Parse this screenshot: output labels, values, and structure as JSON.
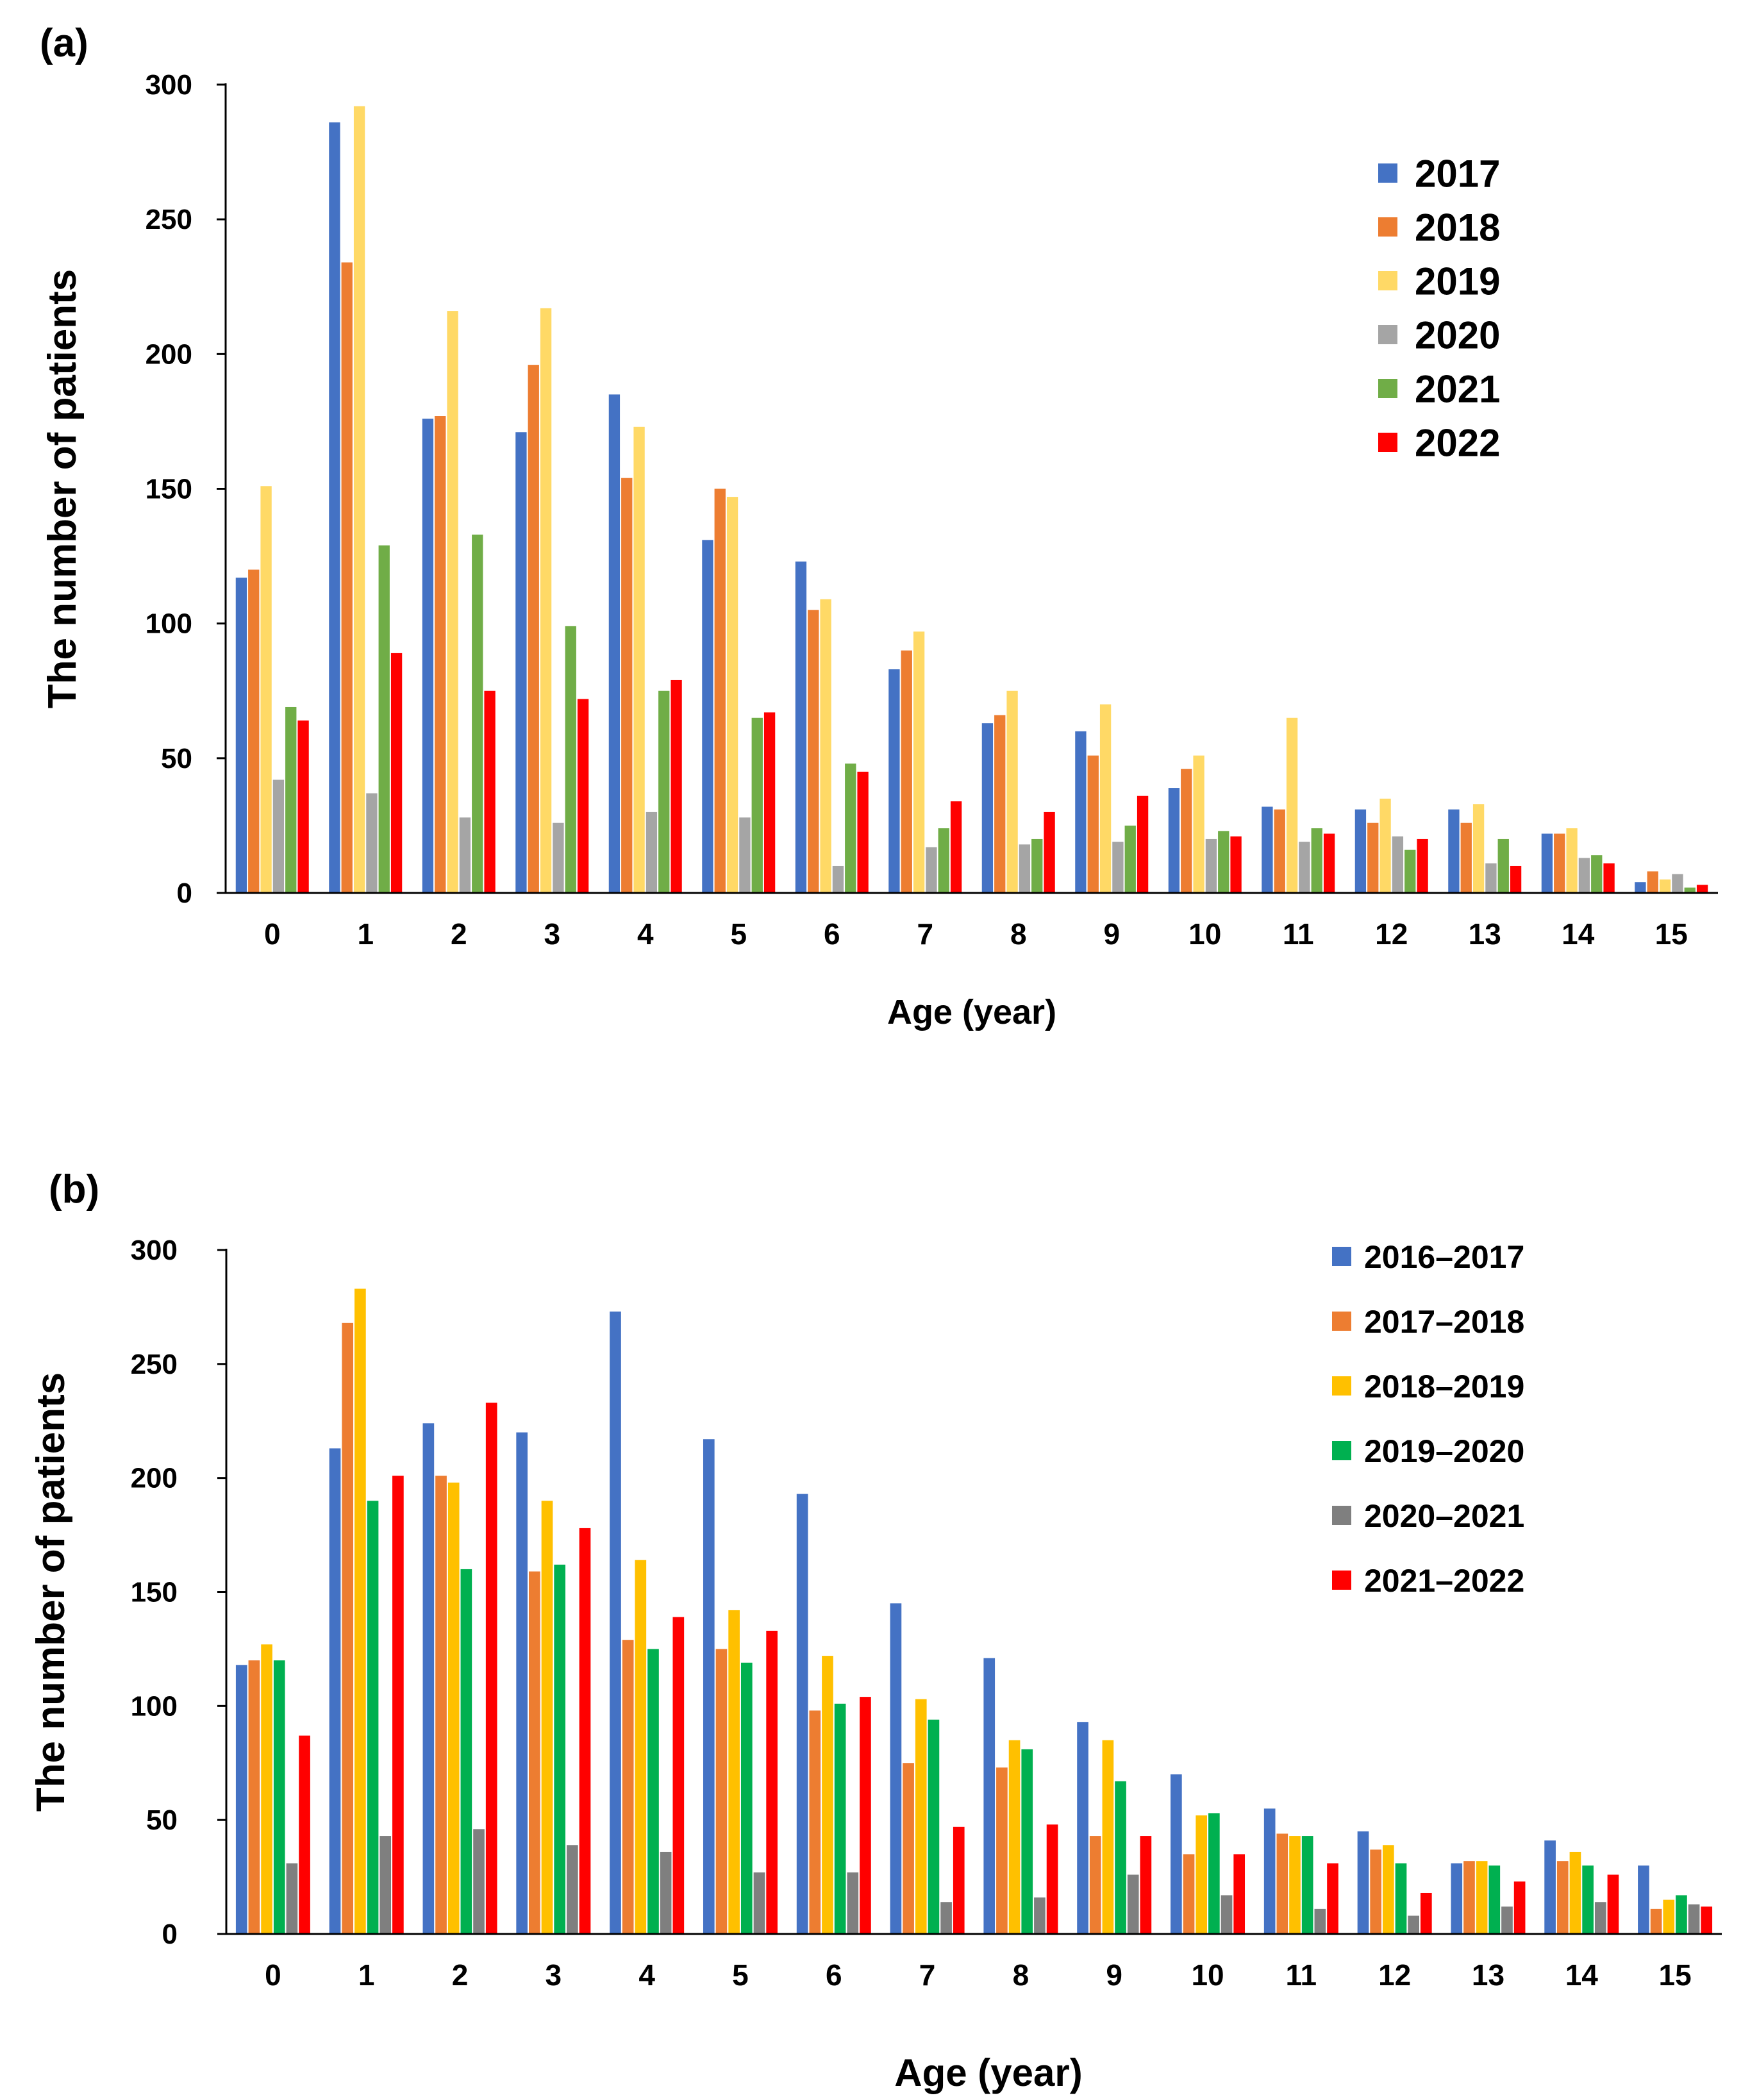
{
  "chart_data": [
    {
      "type": "bar",
      "panel_label": "(a)",
      "xlabel": "Age (year)",
      "ylabel": "The number of patients",
      "ylim": [
        0,
        300
      ],
      "yticks": [
        0,
        50,
        100,
        150,
        200,
        250,
        300
      ],
      "categories": [
        "0",
        "1",
        "2",
        "3",
        "4",
        "5",
        "6",
        "7",
        "8",
        "9",
        "10",
        "11",
        "12",
        "13",
        "14",
        "15"
      ],
      "legend_position": "top-right",
      "series": [
        {
          "name": "2017",
          "color": "#4472C4",
          "values": [
            117,
            286,
            176,
            171,
            185,
            131,
            123,
            83,
            63,
            60,
            39,
            32,
            31,
            31,
            22,
            4
          ]
        },
        {
          "name": "2018",
          "color": "#ED7D31",
          "values": [
            120,
            234,
            177,
            196,
            154,
            150,
            105,
            90,
            66,
            51,
            46,
            31,
            26,
            26,
            22,
            8
          ]
        },
        {
          "name": "2019",
          "color": "#FFD966",
          "values": [
            151,
            292,
            216,
            217,
            173,
            147,
            109,
            97,
            75,
            70,
            51,
            65,
            35,
            33,
            24,
            5
          ]
        },
        {
          "name": "2020",
          "color": "#A5A5A5",
          "values": [
            42,
            37,
            28,
            26,
            30,
            28,
            10,
            17,
            18,
            19,
            20,
            19,
            21,
            11,
            13,
            7
          ]
        },
        {
          "name": "2021",
          "color": "#70AD47",
          "values": [
            69,
            129,
            133,
            99,
            75,
            65,
            48,
            24,
            20,
            25,
            23,
            24,
            16,
            20,
            14,
            2
          ]
        },
        {
          "name": "2022",
          "color": "#FF0000",
          "values": [
            64,
            89,
            75,
            72,
            79,
            67,
            45,
            34,
            30,
            36,
            21,
            22,
            20,
            10,
            11,
            3
          ]
        }
      ]
    },
    {
      "type": "bar",
      "panel_label": "(b)",
      "xlabel": "Age (year)",
      "ylabel": "The number of patients",
      "ylim": [
        0,
        300
      ],
      "yticks": [
        0,
        50,
        100,
        150,
        200,
        250,
        300
      ],
      "categories": [
        "0",
        "1",
        "2",
        "3",
        "4",
        "5",
        "6",
        "7",
        "8",
        "9",
        "10",
        "11",
        "12",
        "13",
        "14",
        "15"
      ],
      "legend_position": "top-right",
      "series": [
        {
          "name": "2016–2017",
          "color": "#4472C4",
          "values": [
            118,
            213,
            224,
            220,
            273,
            217,
            193,
            145,
            121,
            93,
            70,
            55,
            45,
            31,
            41,
            30
          ]
        },
        {
          "name": "2017–2018",
          "color": "#ED7D31",
          "values": [
            120,
            268,
            201,
            159,
            129,
            125,
            98,
            75,
            73,
            43,
            35,
            44,
            37,
            32,
            32,
            11
          ]
        },
        {
          "name": "2018–2019",
          "color": "#FFC000",
          "values": [
            127,
            283,
            198,
            190,
            164,
            142,
            122,
            103,
            85,
            85,
            52,
            43,
            39,
            32,
            36,
            15
          ]
        },
        {
          "name": "2019–2020",
          "color": "#00B050",
          "values": [
            120,
            190,
            160,
            162,
            125,
            119,
            101,
            94,
            81,
            67,
            53,
            43,
            31,
            30,
            30,
            17
          ]
        },
        {
          "name": "2020–2021",
          "color": "#7F7F7F",
          "values": [
            31,
            43,
            46,
            39,
            36,
            27,
            27,
            14,
            16,
            26,
            17,
            11,
            8,
            12,
            14,
            13
          ]
        },
        {
          "name": "2021–2022",
          "color": "#FF0000",
          "values": [
            87,
            201,
            233,
            178,
            139,
            133,
            104,
            47,
            48,
            43,
            35,
            31,
            18,
            23,
            26,
            12
          ]
        }
      ]
    }
  ]
}
